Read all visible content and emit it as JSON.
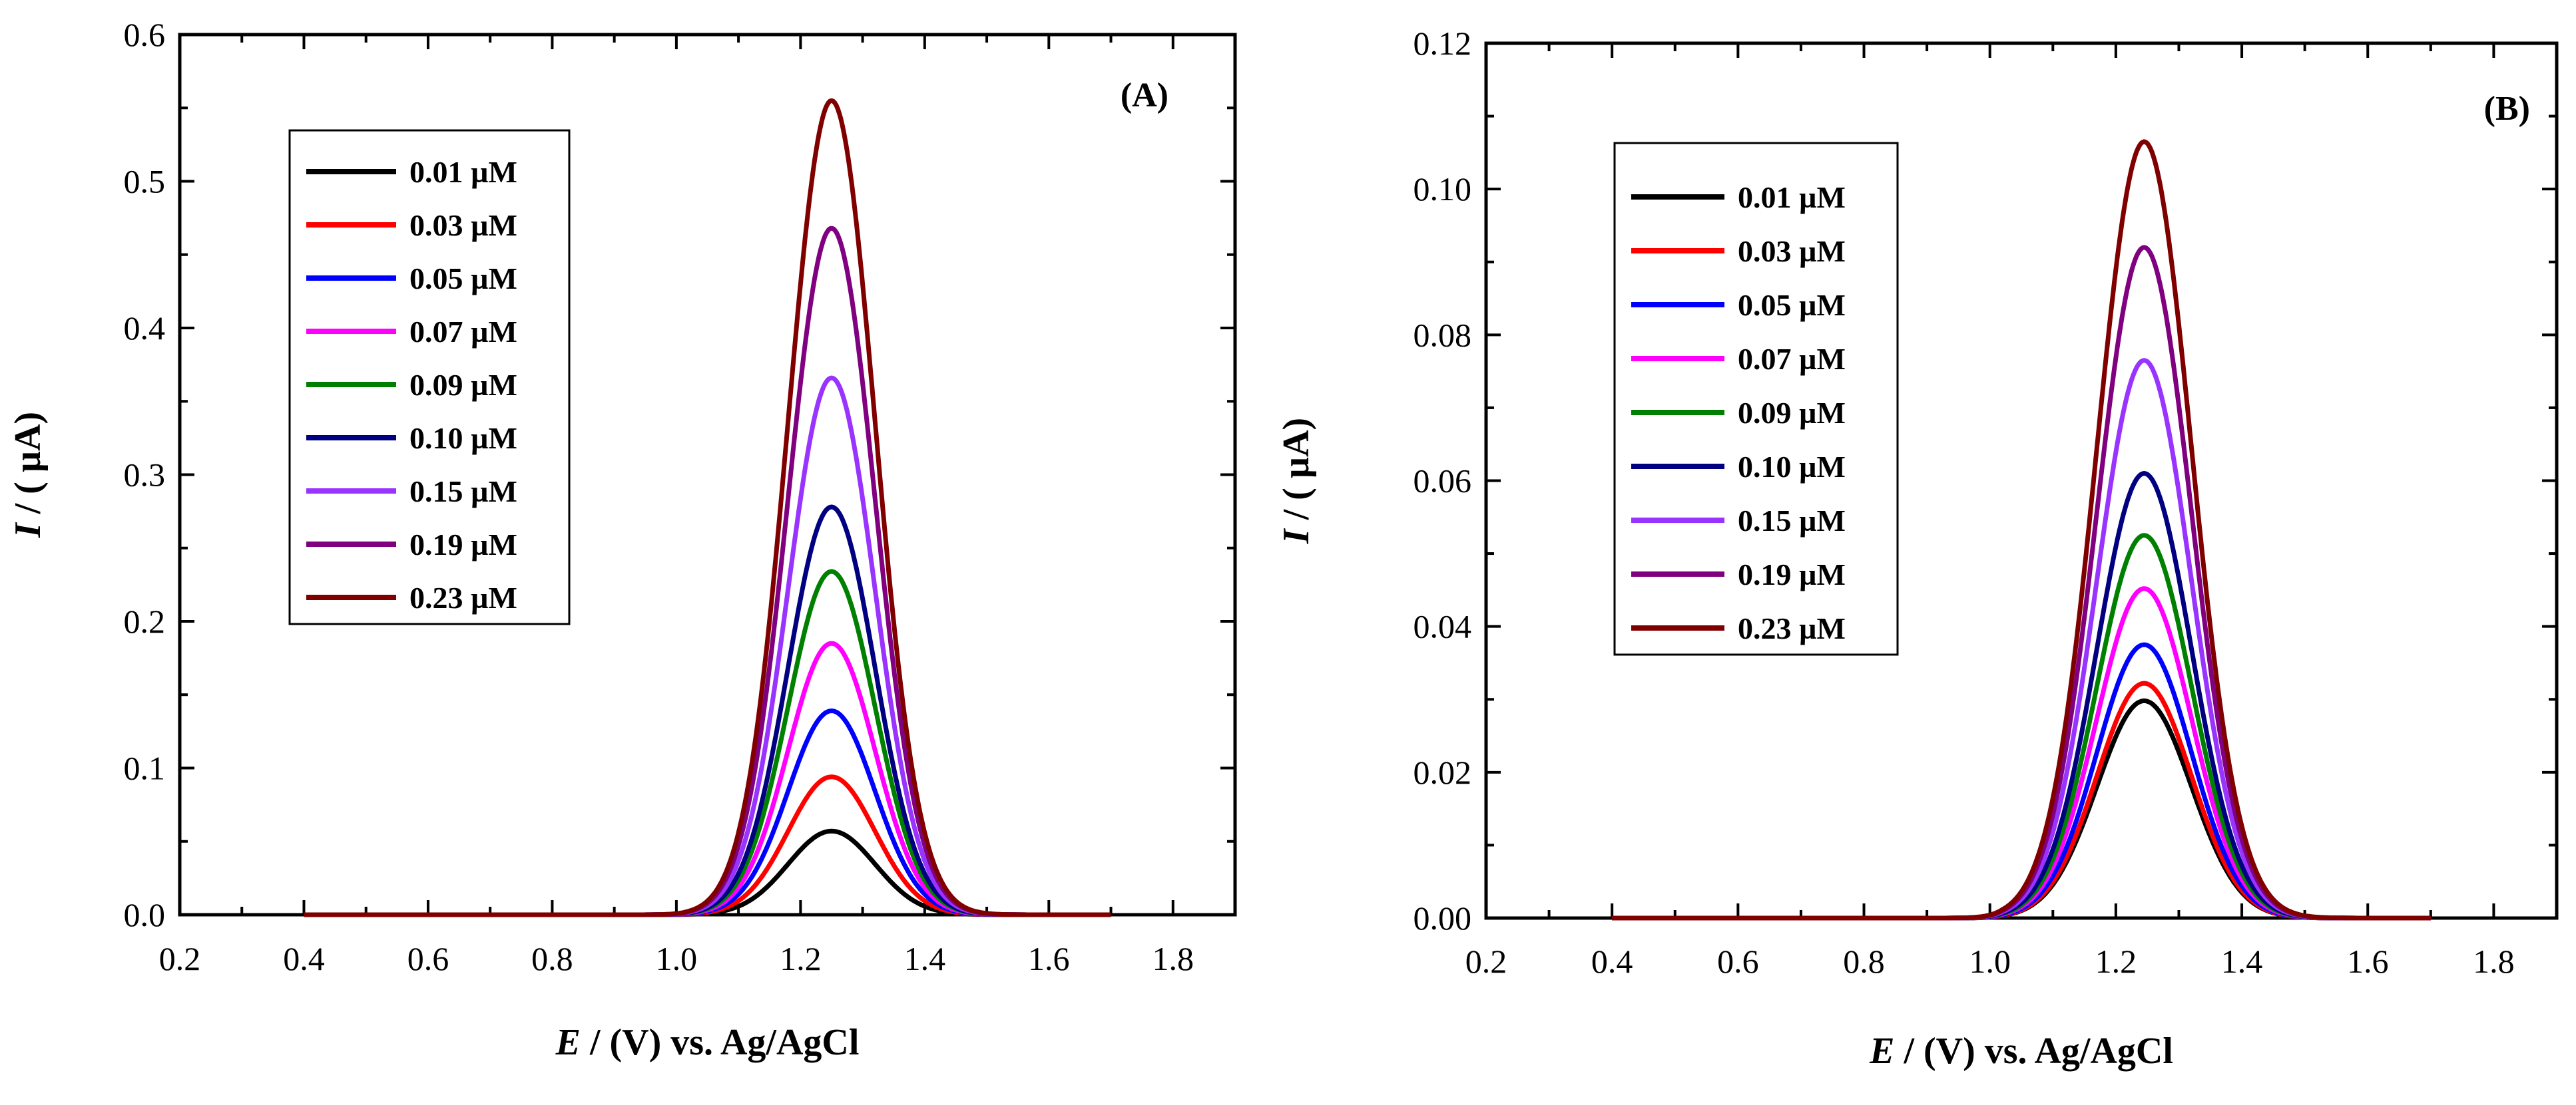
{
  "chart_data": [
    {
      "type": "line",
      "panel_label": "(A)",
      "xlabel_italic": "E",
      "xlabel_rest": " / (V) vs. Ag/AgCl",
      "ylabel_italic": "I",
      "ylabel_rest": " / ( µA)",
      "xlim": [
        0.2,
        1.9
      ],
      "ylim": [
        0,
        0.6
      ],
      "x_ticks": [
        0.2,
        0.4,
        0.6,
        0.8,
        1.0,
        1.2,
        1.4,
        1.6,
        1.8
      ],
      "x_tick_labels": [
        "0.2",
        "0.4",
        "0.6",
        "0.8",
        "1.0",
        "1.2",
        "1.4",
        "1.6",
        "1.8"
      ],
      "y_ticks": [
        0,
        0.1,
        0.2,
        0.3,
        0.4,
        0.5,
        0.6
      ],
      "y_tick_labels": [
        "0.0",
        "0.1",
        "0.2",
        "0.3",
        "0.4",
        "0.5",
        "0.6"
      ],
      "x_range": [
        0.4,
        1.7
      ],
      "peak_potential": 1.25,
      "peak_sigma": 0.07,
      "baseline_end": 1.02,
      "legend_position": "upper-left",
      "series": [
        {
          "name": "0.01 µM",
          "peak": 0.057,
          "color": "#000000"
        },
        {
          "name": "0.03 µM",
          "peak": 0.094,
          "color": "#ff0000"
        },
        {
          "name": "0.05 µM",
          "peak": 0.139,
          "color": "#0000ff"
        },
        {
          "name": "0.07 µM",
          "peak": 0.185,
          "color": "#ff00ff"
        },
        {
          "name": "0.09 µM",
          "peak": 0.234,
          "color": "#008000"
        },
        {
          "name": "0.10 µM",
          "peak": 0.278,
          "color": "#000080"
        },
        {
          "name": "0.15 µM",
          "peak": 0.366,
          "color": "#9933ff"
        },
        {
          "name": "0.19 µM",
          "peak": 0.468,
          "color": "#800080"
        },
        {
          "name": "0.23 µM",
          "peak": 0.555,
          "color": "#800000"
        }
      ]
    },
    {
      "type": "line",
      "panel_label": "(B)",
      "xlabel_italic": "E",
      "xlabel_rest": " / (V) vs. Ag/AgCl",
      "ylabel_italic": "I",
      "ylabel_rest": " / ( µA)",
      "xlim": [
        0.2,
        1.9
      ],
      "ylim": [
        0,
        0.12
      ],
      "x_ticks": [
        0.2,
        0.4,
        0.6,
        0.8,
        1.0,
        1.2,
        1.4,
        1.6,
        1.8
      ],
      "x_tick_labels": [
        "0.2",
        "0.4",
        "0.6",
        "0.8",
        "1.0",
        "1.2",
        "1.4",
        "1.6",
        "1.8"
      ],
      "y_ticks": [
        0,
        0.02,
        0.04,
        0.06,
        0.08,
        0.1,
        0.12
      ],
      "y_tick_labels": [
        "0.00",
        "0.02",
        "0.04",
        "0.06",
        "0.08",
        "0.10",
        "0.12"
      ],
      "x_range": [
        0.4,
        1.7
      ],
      "peak_potential": 1.245,
      "peak_sigma": 0.075,
      "baseline_end": 1.02,
      "legend_position": "upper-left",
      "series": [
        {
          "name": "0.01 µM",
          "peak": 0.0298,
          "color": "#000000"
        },
        {
          "name": "0.03 µM",
          "peak": 0.0322,
          "color": "#ff0000"
        },
        {
          "name": "0.05 µM",
          "peak": 0.0375,
          "color": "#0000ff"
        },
        {
          "name": "0.07 µM",
          "peak": 0.0452,
          "color": "#ff00ff"
        },
        {
          "name": "0.09 µM",
          "peak": 0.0525,
          "color": "#008000"
        },
        {
          "name": "0.10 µM",
          "peak": 0.061,
          "color": "#000080"
        },
        {
          "name": "0.15 µM",
          "peak": 0.0765,
          "color": "#9933ff"
        },
        {
          "name": "0.19 µM",
          "peak": 0.092,
          "color": "#800080"
        },
        {
          "name": "0.23 µM",
          "peak": 0.1065,
          "color": "#800000"
        }
      ]
    }
  ]
}
